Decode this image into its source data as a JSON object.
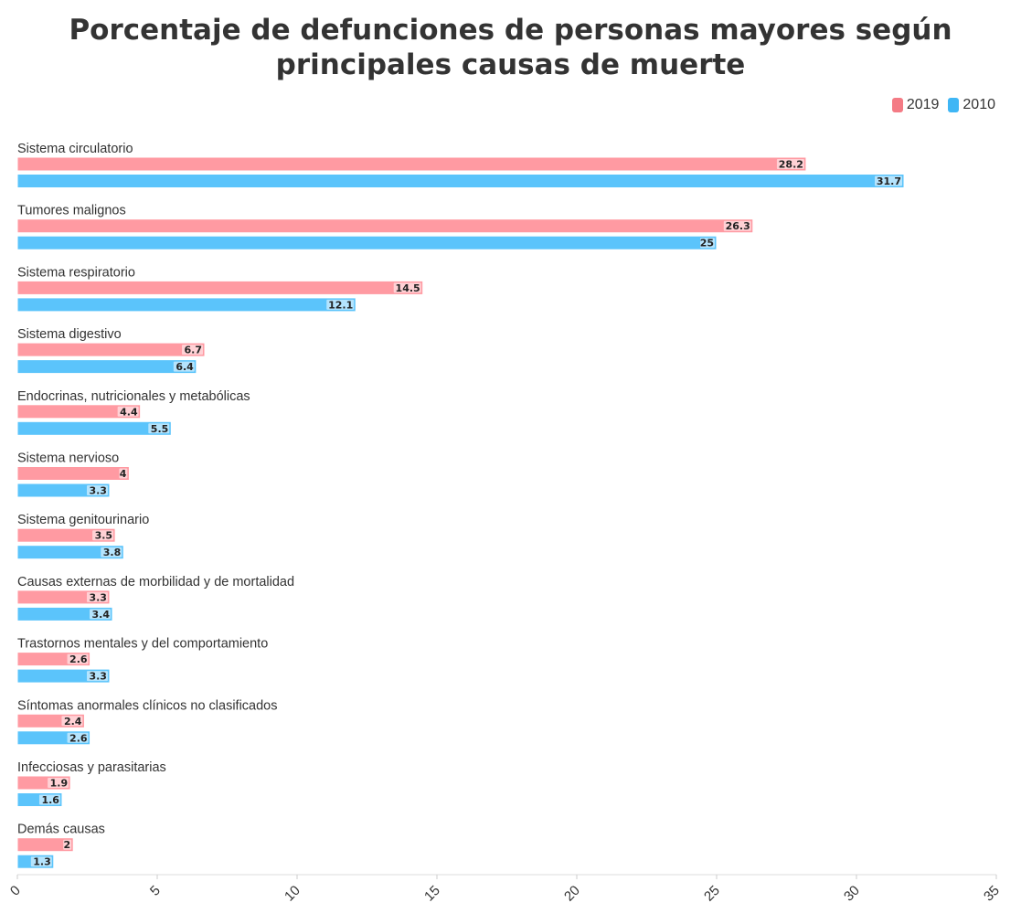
{
  "chart_data": {
    "type": "bar",
    "orientation": "horizontal",
    "title": "Porcentaje de defunciones de personas mayores según principales causas de muerte",
    "categories": [
      "Sistema circulatorio",
      "Tumores malignos",
      "Sistema respiratorio",
      "Sistema digestivo",
      "Endocrinas, nutricionales y metabólicas",
      "Sistema nervioso",
      "Sistema genitourinario",
      "Causas externas de morbilidad y de mortalidad",
      "Trastornos mentales y del comportamiento",
      "Síntomas anormales clínicos no clasificados",
      "Infecciosas y parasitarias",
      "Demás causas"
    ],
    "series": [
      {
        "name": "2019",
        "color": "#ff9aa2",
        "legend_color": "#f47b85",
        "values": [
          28.2,
          26.3,
          14.5,
          6.7,
          4.4,
          4,
          3.5,
          3.3,
          2.6,
          2.4,
          1.9,
          2
        ]
      },
      {
        "name": "2010",
        "color": "#5bc4fb",
        "legend_color": "#3fb6f5",
        "values": [
          31.7,
          25,
          12.1,
          6.4,
          5.5,
          3.3,
          3.8,
          3.4,
          3.3,
          2.6,
          1.6,
          1.3
        ]
      }
    ],
    "xlim": [
      0,
      35
    ],
    "xticks": [
      0,
      5,
      10,
      15,
      20,
      25,
      30,
      35
    ],
    "xlabel": "",
    "ylabel": "",
    "grid": false,
    "legend_position": "top-right"
  }
}
